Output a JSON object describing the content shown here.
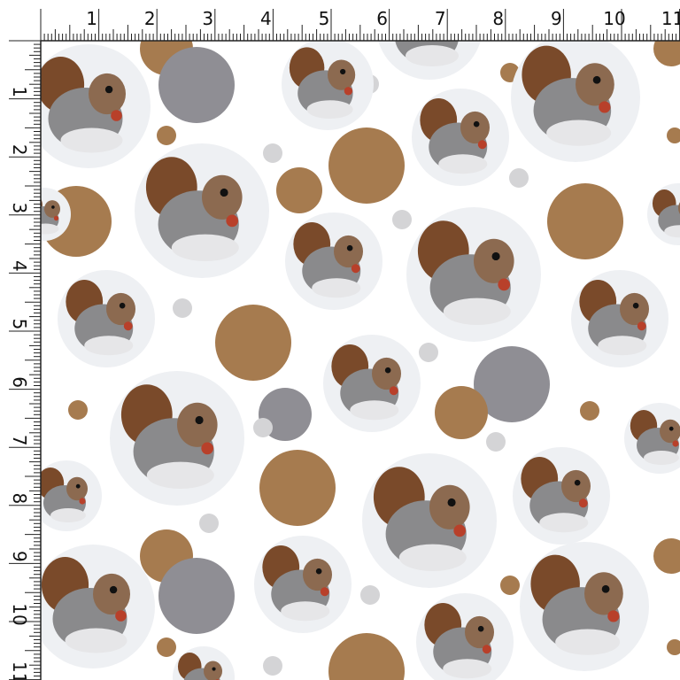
{
  "rulers": {
    "top": {
      "labels": [
        "1",
        "2",
        "3",
        "4",
        "5",
        "6",
        "7",
        "8",
        "9",
        "10",
        "11"
      ]
    },
    "left": {
      "labels": [
        "1",
        "2",
        "3",
        "4",
        "5",
        "6",
        "7",
        "8",
        "9",
        "10",
        "11"
      ]
    }
  }
}
